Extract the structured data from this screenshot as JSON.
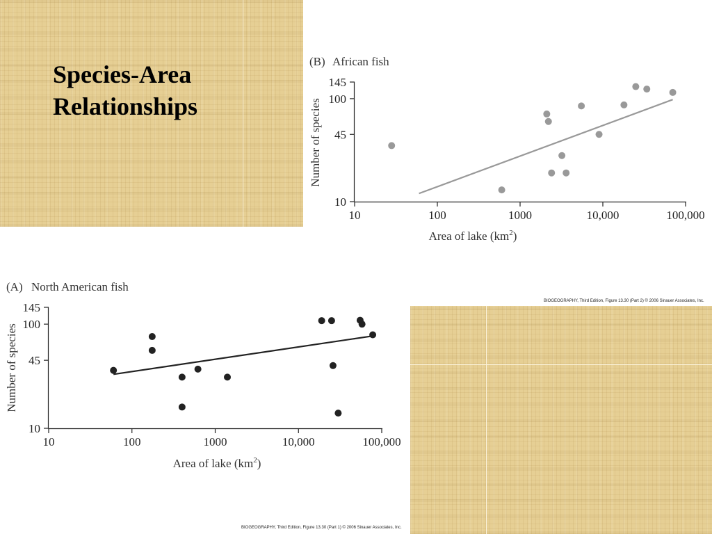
{
  "slide": {
    "title_line1": "Species-Area",
    "title_line2": "Relationships"
  },
  "credits": {
    "africa": "BIOGEOGRAPHY, Third Edition, Figure 13.30 (Part 2) © 2006 Sinauer Associates, Inc.",
    "north_america": "BIOGEOGRAPHY, Third Edition, Figure 13.30 (Part 1) © 2006 Sinauer Associates, Inc."
  },
  "colors": {
    "background_texture": "#e6cf94",
    "africa_series": "#999999",
    "north_america_series": "#222222"
  },
  "chart_data": [
    {
      "id": "africa",
      "type": "scatter",
      "panel_label": "(B)",
      "title": "African fish",
      "xlabel": "Area of lake (km",
      "xlabel_sup": "2",
      "xlabel_close": ")",
      "ylabel": "Number of species",
      "x_scale": "log",
      "xlim": [
        10,
        100000
      ],
      "y_scale": "log",
      "ylim": [
        10,
        145
      ],
      "x_ticks": [
        10,
        100,
        1000,
        10000,
        100000
      ],
      "x_tick_labels": [
        "10",
        "100",
        "1000",
        "10,000",
        "100,000"
      ],
      "y_ticks": [
        10,
        45,
        100,
        145
      ],
      "y_tick_labels": [
        "10",
        "45",
        "100",
        "145"
      ],
      "grid": false,
      "points": [
        {
          "x": 28,
          "y": 35
        },
        {
          "x": 600,
          "y": 13
        },
        {
          "x": 2100,
          "y": 71
        },
        {
          "x": 2200,
          "y": 60
        },
        {
          "x": 2400,
          "y": 19
        },
        {
          "x": 3200,
          "y": 28
        },
        {
          "x": 3600,
          "y": 19
        },
        {
          "x": 5500,
          "y": 85
        },
        {
          "x": 9000,
          "y": 45
        },
        {
          "x": 18000,
          "y": 87
        },
        {
          "x": 25000,
          "y": 131
        },
        {
          "x": 34000,
          "y": 124
        },
        {
          "x": 70000,
          "y": 115
        }
      ],
      "trend_line": {
        "x": [
          60,
          70000
        ],
        "y": [
          12,
          98
        ]
      }
    },
    {
      "id": "north_america",
      "type": "scatter",
      "panel_label": "(A)",
      "title": "North American fish",
      "xlabel": "Area of lake (km",
      "xlabel_sup": "2",
      "xlabel_close": ")",
      "ylabel": "Number of species",
      "x_scale": "log",
      "xlim": [
        10,
        100000
      ],
      "y_scale": "log",
      "ylim": [
        10,
        145
      ],
      "x_ticks": [
        10,
        100,
        1000,
        10000,
        100000
      ],
      "x_tick_labels": [
        "10",
        "100",
        "1000",
        "10,000",
        "100,000"
      ],
      "y_ticks": [
        10,
        45,
        100,
        145
      ],
      "y_tick_labels": [
        "10",
        "45",
        "100",
        "145"
      ],
      "grid": false,
      "points": [
        {
          "x": 60,
          "y": 36
        },
        {
          "x": 175,
          "y": 76
        },
        {
          "x": 175,
          "y": 56
        },
        {
          "x": 400,
          "y": 31
        },
        {
          "x": 400,
          "y": 16
        },
        {
          "x": 620,
          "y": 37
        },
        {
          "x": 1400,
          "y": 31
        },
        {
          "x": 19000,
          "y": 108
        },
        {
          "x": 25000,
          "y": 108
        },
        {
          "x": 26000,
          "y": 40
        },
        {
          "x": 30000,
          "y": 14
        },
        {
          "x": 55000,
          "y": 109
        },
        {
          "x": 58000,
          "y": 100
        },
        {
          "x": 78000,
          "y": 79
        }
      ],
      "trend_line": {
        "x": [
          60,
          78000
        ],
        "y": [
          33,
          77
        ]
      }
    }
  ]
}
